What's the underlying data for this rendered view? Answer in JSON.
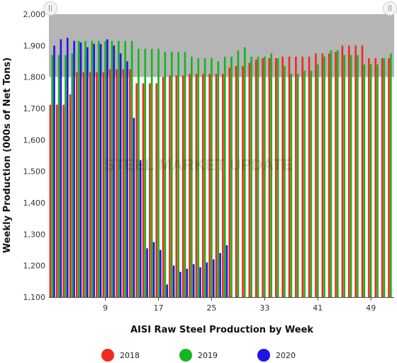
{
  "chart_data": {
    "type": "bar",
    "title": "",
    "watermark": "STEEL MARKET UPDATE",
    "xlabel": "AISI Raw Steel Production by Week",
    "ylabel": "Weekly Production (000s of Net Tons)",
    "ylim": [
      1100,
      2000
    ],
    "yticks": [
      "1,100",
      "1,200",
      "1,300",
      "1,400",
      "1,500",
      "1,600",
      "1,700",
      "1,800",
      "1,900",
      "2,000"
    ],
    "xticks": [
      "9",
      "17",
      "25",
      "33",
      "41",
      "49"
    ],
    "xtick_values": [
      9,
      17,
      25,
      33,
      41,
      49
    ],
    "x_range": [
      1,
      52
    ],
    "grid": false,
    "legend_position": "bottom",
    "series": [
      {
        "name": "2018",
        "color": "#ee2b1e",
        "weeks": [
          1,
          2,
          3,
          4,
          5,
          6,
          7,
          8,
          9,
          10,
          11,
          12,
          13,
          14,
          15,
          16,
          17,
          18,
          19,
          20,
          21,
          22,
          23,
          24,
          25,
          26,
          27,
          28,
          29,
          30,
          31,
          32,
          33,
          34,
          35,
          36,
          37,
          38,
          39,
          40,
          41,
          42,
          43,
          44,
          45,
          46,
          47,
          48,
          49,
          50,
          51,
          52
        ],
        "values": [
          1712,
          1712,
          1712,
          1745,
          1815,
          1815,
          1815,
          1815,
          1815,
          1825,
          1825,
          1825,
          1825,
          1780,
          1780,
          1780,
          1780,
          1800,
          1805,
          1805,
          1805,
          1810,
          1810,
          1810,
          1810,
          1810,
          1810,
          1830,
          1835,
          1835,
          1845,
          1855,
          1860,
          1860,
          1860,
          1865,
          1865,
          1865,
          1865,
          1865,
          1875,
          1875,
          1875,
          1880,
          1900,
          1900,
          1900,
          1900,
          1860,
          1860,
          1860,
          1860
        ]
      },
      {
        "name": "2019",
        "color": "#15b520",
        "weeks": [
          1,
          2,
          3,
          4,
          5,
          6,
          7,
          8,
          9,
          10,
          11,
          12,
          13,
          14,
          15,
          16,
          17,
          18,
          19,
          20,
          21,
          22,
          23,
          24,
          25,
          26,
          27,
          28,
          29,
          30,
          31,
          32,
          33,
          34,
          35,
          36,
          37,
          38,
          39,
          40,
          41,
          42,
          43,
          44,
          45,
          46,
          47,
          48,
          49,
          50,
          51,
          52
        ],
        "values": [
          1870,
          1870,
          1870,
          1875,
          1915,
          1915,
          1915,
          1915,
          1915,
          1915,
          1915,
          1915,
          1915,
          1890,
          1890,
          1890,
          1890,
          1880,
          1880,
          1880,
          1880,
          1865,
          1860,
          1860,
          1860,
          1850,
          1865,
          1865,
          1885,
          1895,
          1865,
          1865,
          1865,
          1875,
          1860,
          1835,
          1810,
          1810,
          1820,
          1820,
          1840,
          1865,
          1885,
          1885,
          1870,
          1870,
          1870,
          1840,
          1840,
          1840,
          1860,
          1875
        ]
      },
      {
        "name": "2020",
        "color": "#2214e6",
        "weeks": [
          1,
          2,
          3,
          4,
          5,
          6,
          7,
          8,
          9,
          10,
          11,
          12,
          13,
          14,
          15,
          16,
          17,
          18,
          19,
          20,
          21,
          22,
          23,
          24,
          25,
          26,
          27
        ],
        "values": [
          1900,
          1920,
          1925,
          1915,
          1910,
          1895,
          1905,
          1905,
          1920,
          1900,
          1875,
          1850,
          1670,
          1535,
          1255,
          1275,
          1250,
          1140,
          1200,
          1180,
          1190,
          1205,
          1195,
          1210,
          1220,
          1240,
          1265
        ]
      }
    ]
  }
}
